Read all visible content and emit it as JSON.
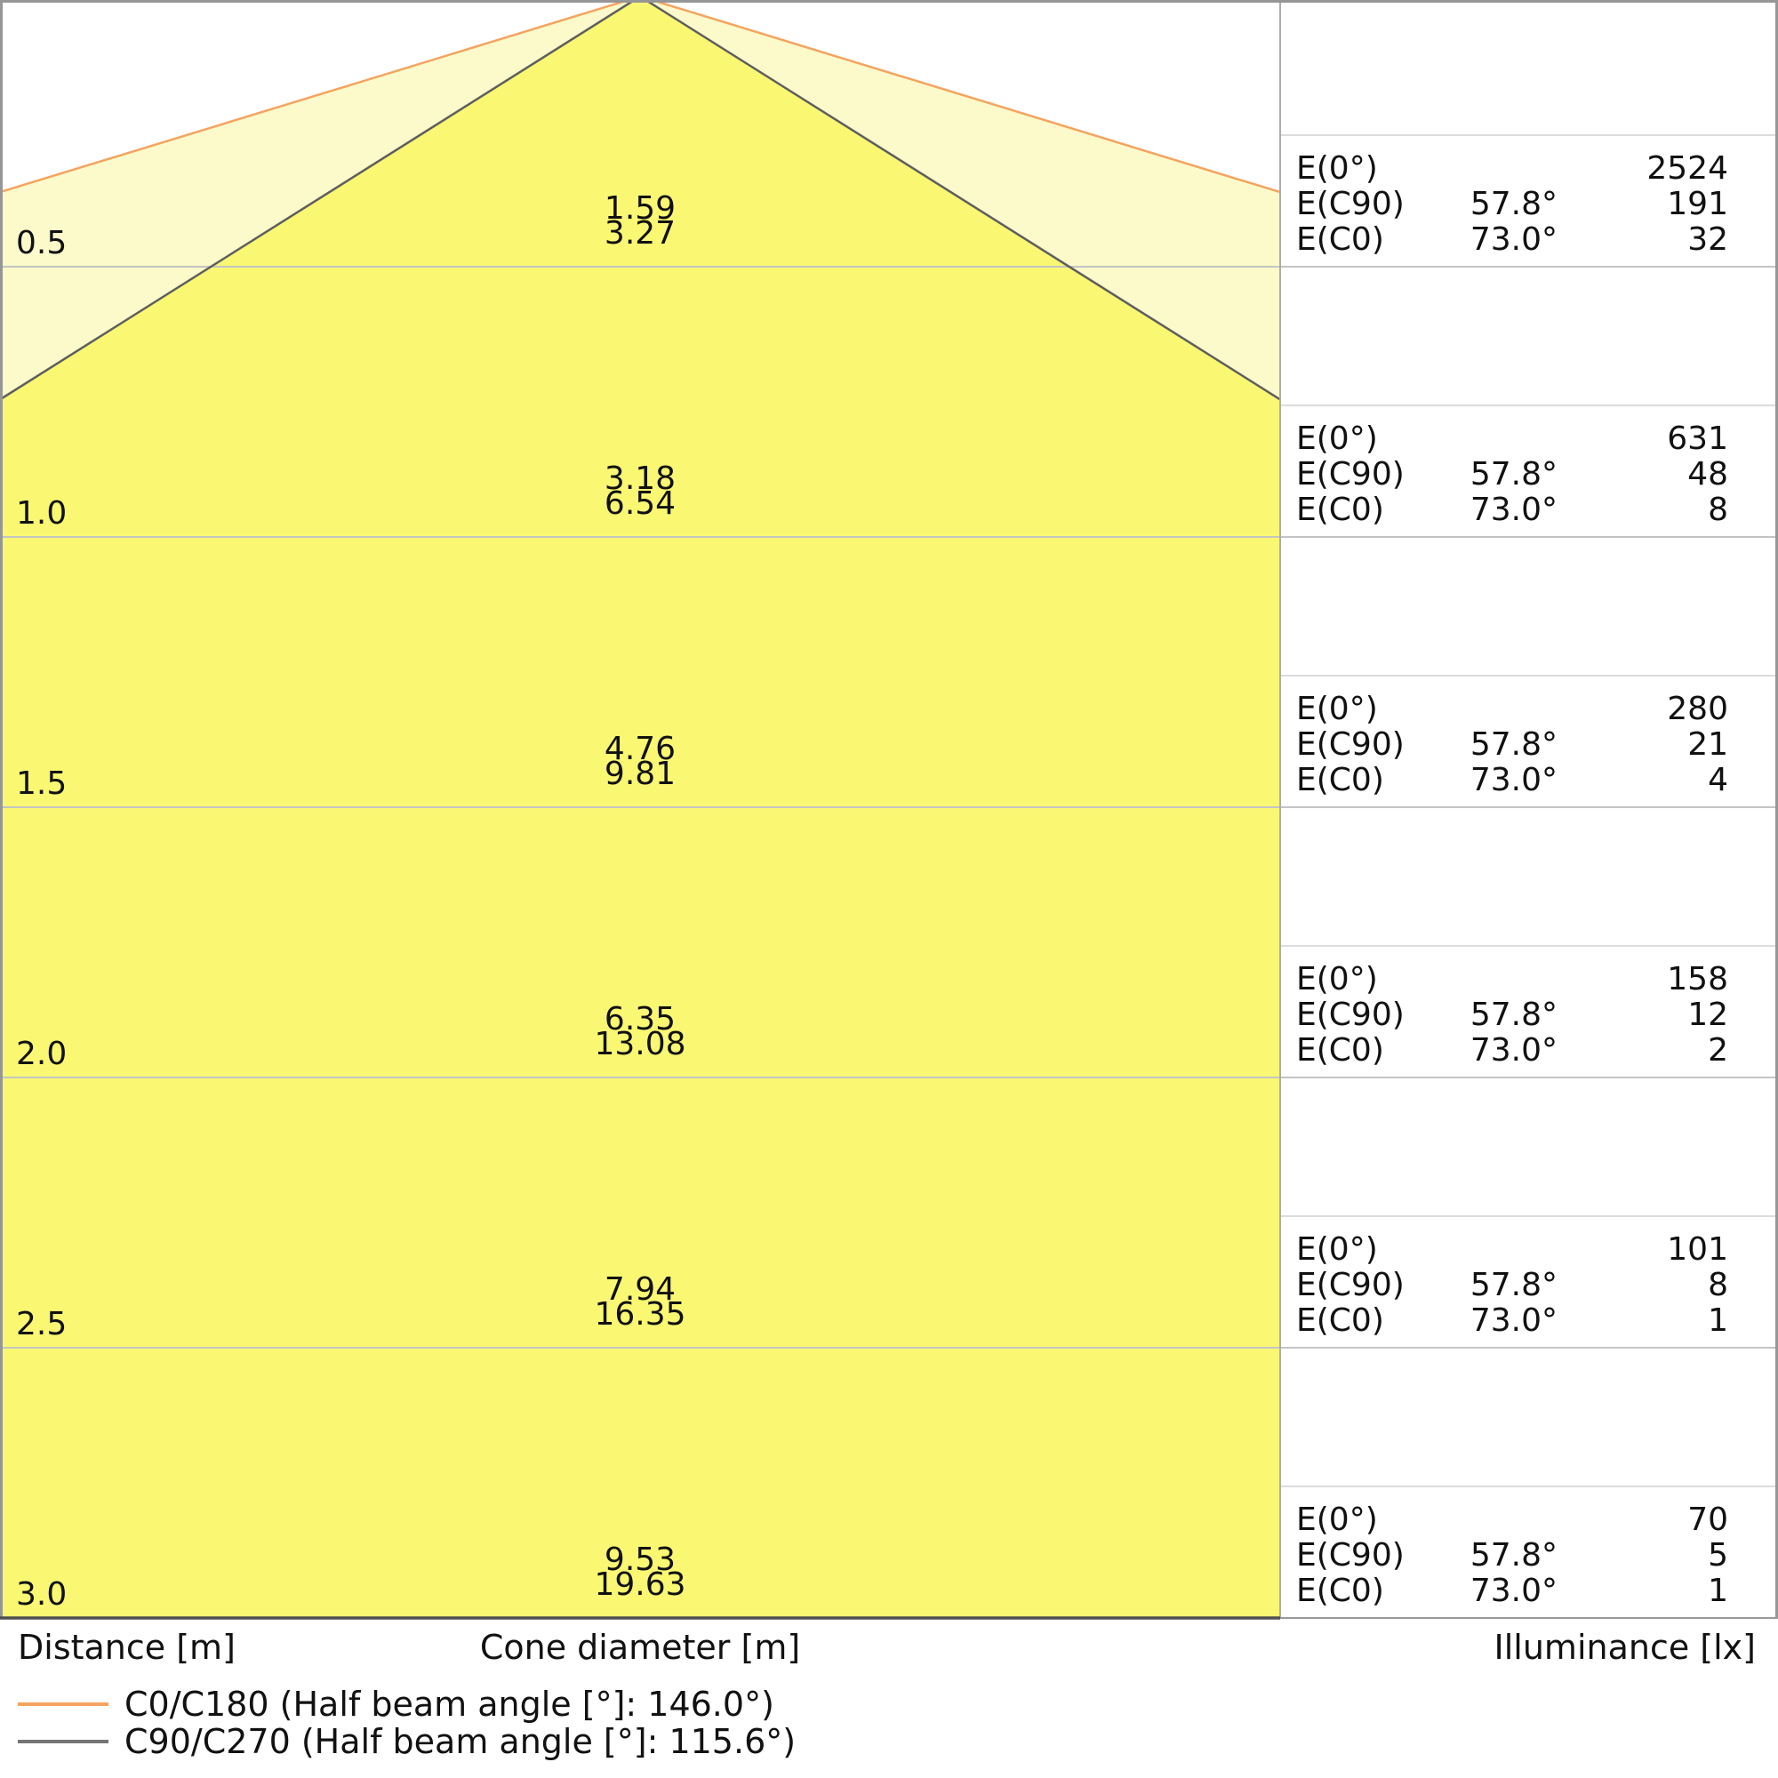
{
  "chart_data": {
    "type": "cone-diagram",
    "description": "Photometric light cone diagram with per-distance cone diameters and illuminance table",
    "axes": {
      "distance_label": "Distance [m]",
      "cone_label": "Cone diameter [m]",
      "illuminance_label": "Illuminance [lx]"
    },
    "distances_m": [
      0.5,
      1.0,
      1.5,
      2.0,
      2.5,
      3.0
    ],
    "series": [
      {
        "name": "C0/C180",
        "half_beam_angle_deg": 146.0,
        "e_angle_deg": 73.0,
        "edge_color": "#F4A460",
        "fill_color": "#FCFACA",
        "cone_diameter_m": [
          3.27,
          6.54,
          9.81,
          13.08,
          16.35,
          19.63
        ]
      },
      {
        "name": "C90/C270",
        "half_beam_angle_deg": 115.6,
        "e_angle_deg": 57.8,
        "edge_color": "#5E5E5E",
        "fill_color": "#FAF873",
        "cone_diameter_m": [
          1.59,
          3.18,
          4.76,
          6.35,
          7.94,
          9.53
        ]
      }
    ],
    "rows": [
      {
        "distance": "0.5",
        "cone_c90": "1.59",
        "cone_c0": "3.27",
        "e": [
          {
            "label": "E(0°)",
            "angle": "",
            "value": "2524"
          },
          {
            "label": "E(C90)",
            "angle": "57.8°",
            "value": "191"
          },
          {
            "label": "E(C0)",
            "angle": "73.0°",
            "value": "32"
          }
        ]
      },
      {
        "distance": "1.0",
        "cone_c90": "3.18",
        "cone_c0": "6.54",
        "e": [
          {
            "label": "E(0°)",
            "angle": "",
            "value": "631"
          },
          {
            "label": "E(C90)",
            "angle": "57.8°",
            "value": "48"
          },
          {
            "label": "E(C0)",
            "angle": "73.0°",
            "value": "8"
          }
        ]
      },
      {
        "distance": "1.5",
        "cone_c90": "4.76",
        "cone_c0": "9.81",
        "e": [
          {
            "label": "E(0°)",
            "angle": "",
            "value": "280"
          },
          {
            "label": "E(C90)",
            "angle": "57.8°",
            "value": "21"
          },
          {
            "label": "E(C0)",
            "angle": "73.0°",
            "value": "4"
          }
        ]
      },
      {
        "distance": "2.0",
        "cone_c90": "6.35",
        "cone_c0": "13.08",
        "e": [
          {
            "label": "E(0°)",
            "angle": "",
            "value": "158"
          },
          {
            "label": "E(C90)",
            "angle": "57.8°",
            "value": "12"
          },
          {
            "label": "E(C0)",
            "angle": "73.0°",
            "value": "2"
          }
        ]
      },
      {
        "distance": "2.5",
        "cone_c90": "7.94",
        "cone_c0": "16.35",
        "e": [
          {
            "label": "E(0°)",
            "angle": "",
            "value": "101"
          },
          {
            "label": "E(C90)",
            "angle": "57.8°",
            "value": "8"
          },
          {
            "label": "E(C0)",
            "angle": "73.0°",
            "value": "1"
          }
        ]
      },
      {
        "distance": "3.0",
        "cone_c90": "9.53",
        "cone_c0": "19.63",
        "e": [
          {
            "label": "E(0°)",
            "angle": "",
            "value": "70"
          },
          {
            "label": "E(C90)",
            "angle": "57.8°",
            "value": "5"
          },
          {
            "label": "E(C0)",
            "angle": "73.0°",
            "value": "1"
          }
        ]
      }
    ],
    "legend": [
      {
        "label": "C0/C180 (Half beam angle [°]: 146.0°)",
        "color": "#F4A460"
      },
      {
        "label": "C90/C270 (Half beam angle [°]: 115.6°)",
        "color": "#757575"
      }
    ],
    "layout_hints": {
      "grid": "horizontal lines at each 0.5 m distance",
      "legend_position": "bottom-left",
      "value_table_position": "right panel"
    }
  }
}
